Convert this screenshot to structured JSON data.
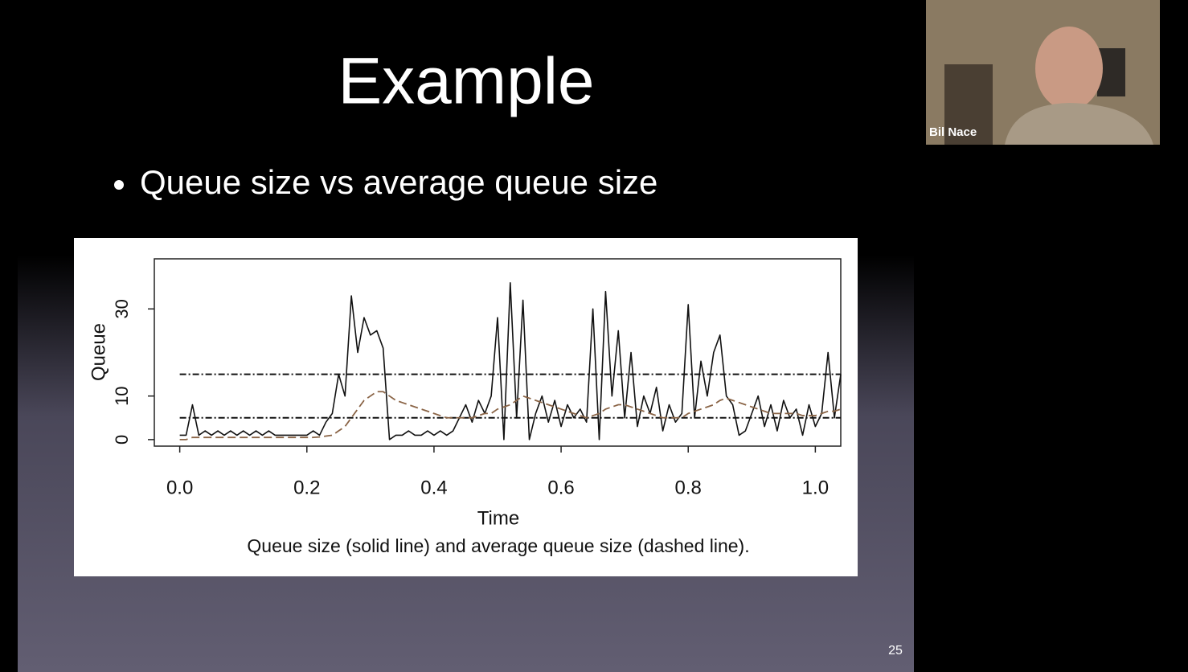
{
  "slide": {
    "title": "Example",
    "bullet": "Queue size vs average queue size",
    "page_number": "25"
  },
  "participant": {
    "name": "Bil Nace"
  },
  "chart_data": {
    "type": "line",
    "x_label": "Time",
    "y_label": "Queue",
    "caption": "Queue size (solid line) and average queue size (dashed line).",
    "xlim": [
      -0.04,
      1.04
    ],
    "ylim": [
      -1.5,
      41.5
    ],
    "xticks": [
      {
        "value": 0,
        "label": "0.0"
      },
      {
        "value": 0.2,
        "label": "0.2"
      },
      {
        "value": 0.4,
        "label": "0.4"
      },
      {
        "value": 0.6,
        "label": "0.6"
      },
      {
        "value": 0.8,
        "label": "0.8"
      },
      {
        "value": 1,
        "label": "1.0"
      }
    ],
    "yticks": [
      0,
      10,
      30
    ],
    "thresholds": [
      5,
      15
    ],
    "x": [
      0,
      0.01,
      0.02,
      0.03,
      0.04,
      0.05,
      0.06,
      0.07,
      0.08,
      0.09,
      0.1,
      0.11,
      0.12,
      0.13,
      0.14,
      0.15,
      0.16,
      0.17,
      0.18,
      0.19,
      0.2,
      0.21,
      0.22,
      0.23,
      0.24,
      0.25,
      0.26,
      0.27,
      0.28,
      0.29,
      0.3,
      0.31,
      0.32,
      0.33,
      0.34,
      0.35,
      0.36,
      0.37,
      0.38,
      0.39,
      0.4,
      0.41,
      0.42,
      0.43,
      0.44,
      0.45,
      0.46,
      0.47,
      0.48,
      0.49,
      0.5,
      0.51,
      0.52,
      0.53,
      0.54,
      0.55,
      0.56,
      0.57,
      0.58,
      0.59,
      0.6,
      0.61,
      0.62,
      0.63,
      0.64,
      0.65,
      0.66,
      0.67,
      0.68,
      0.69,
      0.7,
      0.71,
      0.72,
      0.73,
      0.74,
      0.75,
      0.76,
      0.77,
      0.78,
      0.79,
      0.8,
      0.81,
      0.82,
      0.83,
      0.84,
      0.85,
      0.86,
      0.87,
      0.88,
      0.89,
      0.9,
      0.91,
      0.92,
      0.93,
      0.94,
      0.95,
      0.96,
      0.97,
      0.98,
      0.99,
      1,
      1.01,
      1.02,
      1.03,
      1.04
    ],
    "series": [
      {
        "name": "Queue size",
        "color": "#111111",
        "line_style": "solid",
        "values": [
          1,
          1,
          8,
          1,
          2,
          1,
          2,
          1,
          2,
          1,
          2,
          1,
          2,
          1,
          2,
          1,
          1,
          1,
          1,
          1,
          1,
          2,
          1,
          4,
          6,
          15,
          10,
          33,
          20,
          28,
          24,
          25,
          21,
          0,
          1,
          1,
          2,
          1,
          1,
          2,
          1,
          2,
          1,
          2,
          5,
          8,
          4,
          9,
          6,
          10,
          28,
          0,
          36,
          5,
          32,
          0,
          6,
          10,
          4,
          9,
          3,
          8,
          5,
          7,
          4,
          30,
          0,
          34,
          10,
          25,
          5,
          20,
          3,
          10,
          6,
          12,
          2,
          8,
          4,
          6,
          31,
          5,
          18,
          10,
          20,
          24,
          10,
          8,
          1,
          2,
          6,
          10,
          3,
          8,
          2,
          9,
          5,
          7,
          1,
          8,
          3,
          6,
          20,
          5,
          15
        ]
      },
      {
        "name": "Average queue size",
        "color": "#8a6446",
        "line_style": "dashed",
        "values": [
          0,
          0,
          0.5,
          0.5,
          0.5,
          0.5,
          0.5,
          0.5,
          0.5,
          0.5,
          0.5,
          0.5,
          0.5,
          0.5,
          0.5,
          0.5,
          0.5,
          0.5,
          0.5,
          0.5,
          0.5,
          0.5,
          0.6,
          0.8,
          1,
          2,
          3,
          5,
          7,
          9,
          10,
          11,
          11,
          10,
          9,
          8.5,
          8,
          7.5,
          7,
          6.5,
          6,
          5.5,
          5,
          5,
          5,
          5,
          5,
          5.5,
          6,
          6,
          7,
          7.5,
          8,
          9,
          10,
          9.5,
          9,
          8.5,
          8,
          7.5,
          7,
          6.5,
          6,
          5.5,
          5,
          5.5,
          6,
          7,
          7.5,
          8,
          8,
          7.5,
          7,
          6.5,
          6,
          5.5,
          5,
          5,
          5,
          5,
          6,
          6.5,
          7,
          7.5,
          8,
          9,
          9.5,
          9,
          8.5,
          8,
          7.5,
          7,
          6.5,
          6,
          6,
          6,
          6,
          6,
          5.5,
          5.5,
          5.5,
          6,
          6.5,
          6.5,
          7
        ]
      }
    ]
  }
}
